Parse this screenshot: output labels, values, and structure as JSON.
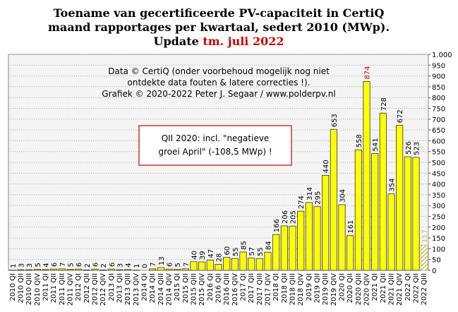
{
  "chart_data": {
    "type": "bar",
    "title": [
      "Toename van gecertificeerde PV-capaciteit in CertiQ",
      "maand rapportages per kwartaal, sedert 2010 (MWp).",
      "Update "
    ],
    "title_highlight": "tm. juli 2022",
    "title_highlight_color": "#cc0000",
    "annotation": [
      "Data © CertiQ (onder voorbehoud mogelijk  nog niet",
      "ontdekte data fouten & latere correcties !).",
      "Grafiek  © 2020-2022 Peter J. Segaar / www.polderpv.nl"
    ],
    "note_box": [
      "QII 2020:  incl. \"negatieve",
      "groei April\"  (-108,5 MWp)  !"
    ],
    "note_box_color": "#cc0000",
    "categories": [
      "2010 QI",
      "2010 QII",
      "2010 QIII",
      "2010 QIV",
      "2011 QI",
      "2011 QII",
      "2011 QIII",
      "2011 QIV",
      "2012 QI",
      "2012 QII",
      "2012 QIII",
      "2012 QIV",
      "2013 QI",
      "2013 QII",
      "2013 QIII",
      "2013 QIV",
      "2014 QI",
      "2014 QII",
      "2014 QIII",
      "2014 QIV",
      "2015 QI",
      "2015 QII",
      "2015 QIII",
      "2015 QIV",
      "2016 QI",
      "2016 QII",
      "2016 QIII",
      "2016 QIV",
      "2017 QI",
      "2017 QII",
      "2017 QIII",
      "2017 QIV",
      "2018 QI",
      "2018 QII",
      "2018 QIII",
      "2018 QIV",
      "2019 QI",
      "2019 QII",
      "2019 QIII",
      "2019 QIV",
      "2020 QI",
      "2020 QII",
      "2020 QIII",
      "2020 QIV",
      "2021 QI",
      "2021 QII",
      "2021 QIII",
      "2021 QIV",
      "2022 QI",
      "2022 QII",
      "2022 QIII"
    ],
    "values": [
      1,
      3,
      3,
      5,
      4,
      6,
      7,
      5,
      6,
      2,
      6,
      2,
      6,
      3,
      4,
      1,
      0,
      7,
      13,
      6,
      5,
      7,
      40,
      39,
      47,
      28,
      60,
      55,
      85,
      57,
      55,
      84,
      166,
      206,
      205,
      274,
      314,
      295,
      440,
      653,
      304,
      161,
      558,
      874,
      541,
      728,
      354,
      672,
      526,
      523,
      117
    ],
    "color": "#ffff00",
    "edge_color": "#333333",
    "partial_index": 50,
    "partial_color": "#c8c060",
    "highlight_index": 43,
    "highlight_color": "#cc0000",
    "ylim": [
      0,
      1000
    ],
    "yticks": [
      0,
      50,
      100,
      150,
      200,
      250,
      300,
      350,
      400,
      450,
      500,
      550,
      600,
      650,
      700,
      750,
      800,
      850,
      900,
      950,
      {
        "value": 1000,
        "label": "1.000"
      }
    ],
    "grid": true
  }
}
